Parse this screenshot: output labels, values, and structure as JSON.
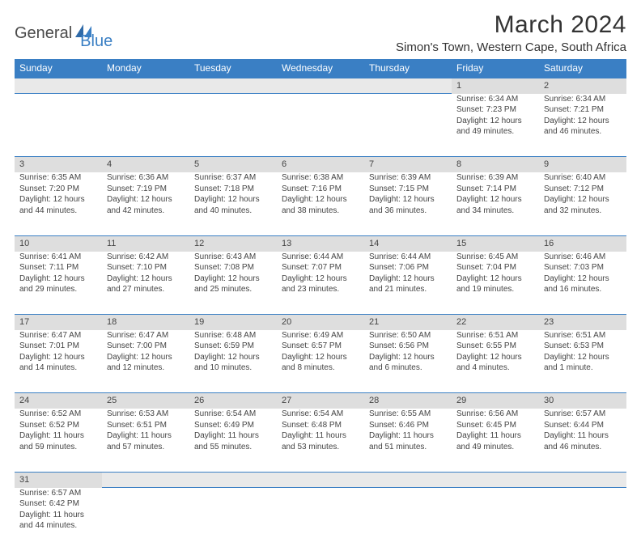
{
  "logo": {
    "part1": "General",
    "part2": "Blue"
  },
  "title": "March 2024",
  "location": "Simon's Town, Western Cape, South Africa",
  "colors": {
    "header_bg": "#3a7fc4",
    "header_text": "#ffffff",
    "daynum_bg": "#dedede",
    "text": "#333333",
    "border": "#3a7fc4"
  },
  "weekdays": [
    "Sunday",
    "Monday",
    "Tuesday",
    "Wednesday",
    "Thursday",
    "Friday",
    "Saturday"
  ],
  "weeks": [
    {
      "nums": [
        "",
        "",
        "",
        "",
        "",
        "1",
        "2"
      ],
      "cells": [
        null,
        null,
        null,
        null,
        null,
        {
          "sr": "Sunrise: 6:34 AM",
          "ss": "Sunset: 7:23 PM",
          "dl1": "Daylight: 12 hours",
          "dl2": "and 49 minutes."
        },
        {
          "sr": "Sunrise: 6:34 AM",
          "ss": "Sunset: 7:21 PM",
          "dl1": "Daylight: 12 hours",
          "dl2": "and 46 minutes."
        }
      ]
    },
    {
      "nums": [
        "3",
        "4",
        "5",
        "6",
        "7",
        "8",
        "9"
      ],
      "cells": [
        {
          "sr": "Sunrise: 6:35 AM",
          "ss": "Sunset: 7:20 PM",
          "dl1": "Daylight: 12 hours",
          "dl2": "and 44 minutes."
        },
        {
          "sr": "Sunrise: 6:36 AM",
          "ss": "Sunset: 7:19 PM",
          "dl1": "Daylight: 12 hours",
          "dl2": "and 42 minutes."
        },
        {
          "sr": "Sunrise: 6:37 AM",
          "ss": "Sunset: 7:18 PM",
          "dl1": "Daylight: 12 hours",
          "dl2": "and 40 minutes."
        },
        {
          "sr": "Sunrise: 6:38 AM",
          "ss": "Sunset: 7:16 PM",
          "dl1": "Daylight: 12 hours",
          "dl2": "and 38 minutes."
        },
        {
          "sr": "Sunrise: 6:39 AM",
          "ss": "Sunset: 7:15 PM",
          "dl1": "Daylight: 12 hours",
          "dl2": "and 36 minutes."
        },
        {
          "sr": "Sunrise: 6:39 AM",
          "ss": "Sunset: 7:14 PM",
          "dl1": "Daylight: 12 hours",
          "dl2": "and 34 minutes."
        },
        {
          "sr": "Sunrise: 6:40 AM",
          "ss": "Sunset: 7:12 PM",
          "dl1": "Daylight: 12 hours",
          "dl2": "and 32 minutes."
        }
      ]
    },
    {
      "nums": [
        "10",
        "11",
        "12",
        "13",
        "14",
        "15",
        "16"
      ],
      "cells": [
        {
          "sr": "Sunrise: 6:41 AM",
          "ss": "Sunset: 7:11 PM",
          "dl1": "Daylight: 12 hours",
          "dl2": "and 29 minutes."
        },
        {
          "sr": "Sunrise: 6:42 AM",
          "ss": "Sunset: 7:10 PM",
          "dl1": "Daylight: 12 hours",
          "dl2": "and 27 minutes."
        },
        {
          "sr": "Sunrise: 6:43 AM",
          "ss": "Sunset: 7:08 PM",
          "dl1": "Daylight: 12 hours",
          "dl2": "and 25 minutes."
        },
        {
          "sr": "Sunrise: 6:44 AM",
          "ss": "Sunset: 7:07 PM",
          "dl1": "Daylight: 12 hours",
          "dl2": "and 23 minutes."
        },
        {
          "sr": "Sunrise: 6:44 AM",
          "ss": "Sunset: 7:06 PM",
          "dl1": "Daylight: 12 hours",
          "dl2": "and 21 minutes."
        },
        {
          "sr": "Sunrise: 6:45 AM",
          "ss": "Sunset: 7:04 PM",
          "dl1": "Daylight: 12 hours",
          "dl2": "and 19 minutes."
        },
        {
          "sr": "Sunrise: 6:46 AM",
          "ss": "Sunset: 7:03 PM",
          "dl1": "Daylight: 12 hours",
          "dl2": "and 16 minutes."
        }
      ]
    },
    {
      "nums": [
        "17",
        "18",
        "19",
        "20",
        "21",
        "22",
        "23"
      ],
      "cells": [
        {
          "sr": "Sunrise: 6:47 AM",
          "ss": "Sunset: 7:01 PM",
          "dl1": "Daylight: 12 hours",
          "dl2": "and 14 minutes."
        },
        {
          "sr": "Sunrise: 6:47 AM",
          "ss": "Sunset: 7:00 PM",
          "dl1": "Daylight: 12 hours",
          "dl2": "and 12 minutes."
        },
        {
          "sr": "Sunrise: 6:48 AM",
          "ss": "Sunset: 6:59 PM",
          "dl1": "Daylight: 12 hours",
          "dl2": "and 10 minutes."
        },
        {
          "sr": "Sunrise: 6:49 AM",
          "ss": "Sunset: 6:57 PM",
          "dl1": "Daylight: 12 hours",
          "dl2": "and 8 minutes."
        },
        {
          "sr": "Sunrise: 6:50 AM",
          "ss": "Sunset: 6:56 PM",
          "dl1": "Daylight: 12 hours",
          "dl2": "and 6 minutes."
        },
        {
          "sr": "Sunrise: 6:51 AM",
          "ss": "Sunset: 6:55 PM",
          "dl1": "Daylight: 12 hours",
          "dl2": "and 4 minutes."
        },
        {
          "sr": "Sunrise: 6:51 AM",
          "ss": "Sunset: 6:53 PM",
          "dl1": "Daylight: 12 hours",
          "dl2": "and 1 minute."
        }
      ]
    },
    {
      "nums": [
        "24",
        "25",
        "26",
        "27",
        "28",
        "29",
        "30"
      ],
      "cells": [
        {
          "sr": "Sunrise: 6:52 AM",
          "ss": "Sunset: 6:52 PM",
          "dl1": "Daylight: 11 hours",
          "dl2": "and 59 minutes."
        },
        {
          "sr": "Sunrise: 6:53 AM",
          "ss": "Sunset: 6:51 PM",
          "dl1": "Daylight: 11 hours",
          "dl2": "and 57 minutes."
        },
        {
          "sr": "Sunrise: 6:54 AM",
          "ss": "Sunset: 6:49 PM",
          "dl1": "Daylight: 11 hours",
          "dl2": "and 55 minutes."
        },
        {
          "sr": "Sunrise: 6:54 AM",
          "ss": "Sunset: 6:48 PM",
          "dl1": "Daylight: 11 hours",
          "dl2": "and 53 minutes."
        },
        {
          "sr": "Sunrise: 6:55 AM",
          "ss": "Sunset: 6:46 PM",
          "dl1": "Daylight: 11 hours",
          "dl2": "and 51 minutes."
        },
        {
          "sr": "Sunrise: 6:56 AM",
          "ss": "Sunset: 6:45 PM",
          "dl1": "Daylight: 11 hours",
          "dl2": "and 49 minutes."
        },
        {
          "sr": "Sunrise: 6:57 AM",
          "ss": "Sunset: 6:44 PM",
          "dl1": "Daylight: 11 hours",
          "dl2": "and 46 minutes."
        }
      ]
    },
    {
      "nums": [
        "31",
        "",
        "",
        "",
        "",
        "",
        ""
      ],
      "cells": [
        {
          "sr": "Sunrise: 6:57 AM",
          "ss": "Sunset: 6:42 PM",
          "dl1": "Daylight: 11 hours",
          "dl2": "and 44 minutes."
        },
        null,
        null,
        null,
        null,
        null,
        null
      ]
    }
  ]
}
